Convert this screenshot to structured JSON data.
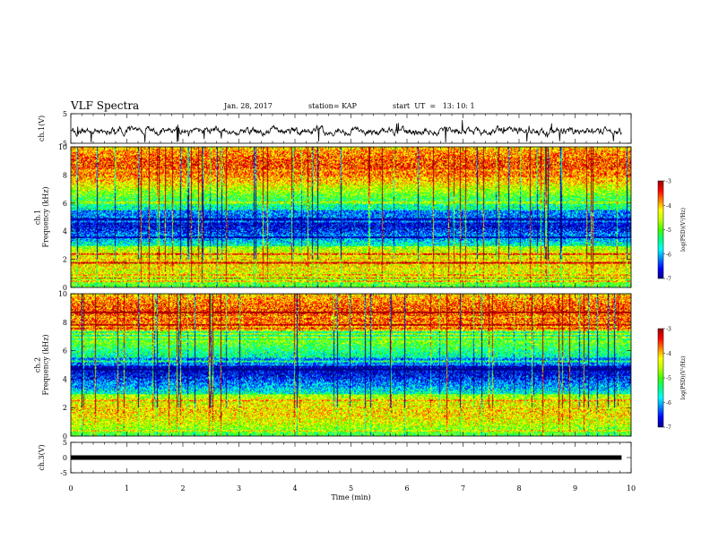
{
  "header": {
    "title": "VLF Spectra",
    "date": "Jan. 28, 2017",
    "station": "station= KAP",
    "start_time": "start  UT  =   13: 10: 1"
  },
  "chart_data": [
    {
      "type": "line",
      "panel": "ch.1 waveform",
      "ylabel": "ch.1(V)",
      "ylim": [
        -5,
        5
      ],
      "y_ticks": [
        "5",
        "-5"
      ],
      "xlim": [
        0,
        10
      ],
      "data_end_min": 9.83,
      "series": [
        {
          "approx_mean": 0,
          "approx_amplitude": 2.5
        }
      ]
    },
    {
      "type": "heatmap",
      "panel": "ch.1 spectrogram",
      "ylabel": "ch.1\nFrequency  (kHz)",
      "ylim": [
        0,
        10
      ],
      "y_ticks": [
        "0",
        "2",
        "4",
        "6",
        "8",
        "10"
      ],
      "xlim": [
        0,
        10
      ],
      "colorbar": {
        "label": "log(PSD)(V²/Hz)",
        "range": [
          -7,
          -3
        ],
        "ticks": [
          "-3",
          "-4",
          "-5",
          "-6",
          "-7"
        ]
      }
    },
    {
      "type": "heatmap",
      "panel": "ch.2 spectrogram",
      "ylabel": "ch.2\nFrequency  (kHz)",
      "ylim": [
        0,
        10
      ],
      "y_ticks": [
        "0",
        "2",
        "4",
        "6",
        "8",
        "10"
      ],
      "xlim": [
        0,
        10
      ],
      "colorbar": {
        "label": "log(PSD)(V²/Hz)",
        "range": [
          -7,
          -3
        ],
        "ticks": [
          "-3",
          "-4",
          "-5",
          "-6",
          "-7"
        ]
      }
    },
    {
      "type": "line",
      "panel": "ch.3 waveform",
      "ylabel": "ch.3(V)",
      "ylim": [
        -5,
        5
      ],
      "y_ticks": [
        "5",
        "0",
        "-5"
      ],
      "xlim": [
        0,
        10
      ],
      "series": [
        {
          "approx_value": 0
        }
      ]
    }
  ],
  "xaxis": {
    "label": "Time  (min)",
    "ticks": [
      "0",
      "1",
      "2",
      "3",
      "4",
      "5",
      "6",
      "7",
      "8",
      "9",
      "10"
    ]
  },
  "colors": {
    "colormap": [
      "#00008a",
      "#0000ff",
      "#0080ff",
      "#00ffff",
      "#00ff80",
      "#40ff00",
      "#c0ff00",
      "#ffff00",
      "#ff8000",
      "#ff0000",
      "#a00000"
    ],
    "trace": "#000000"
  }
}
